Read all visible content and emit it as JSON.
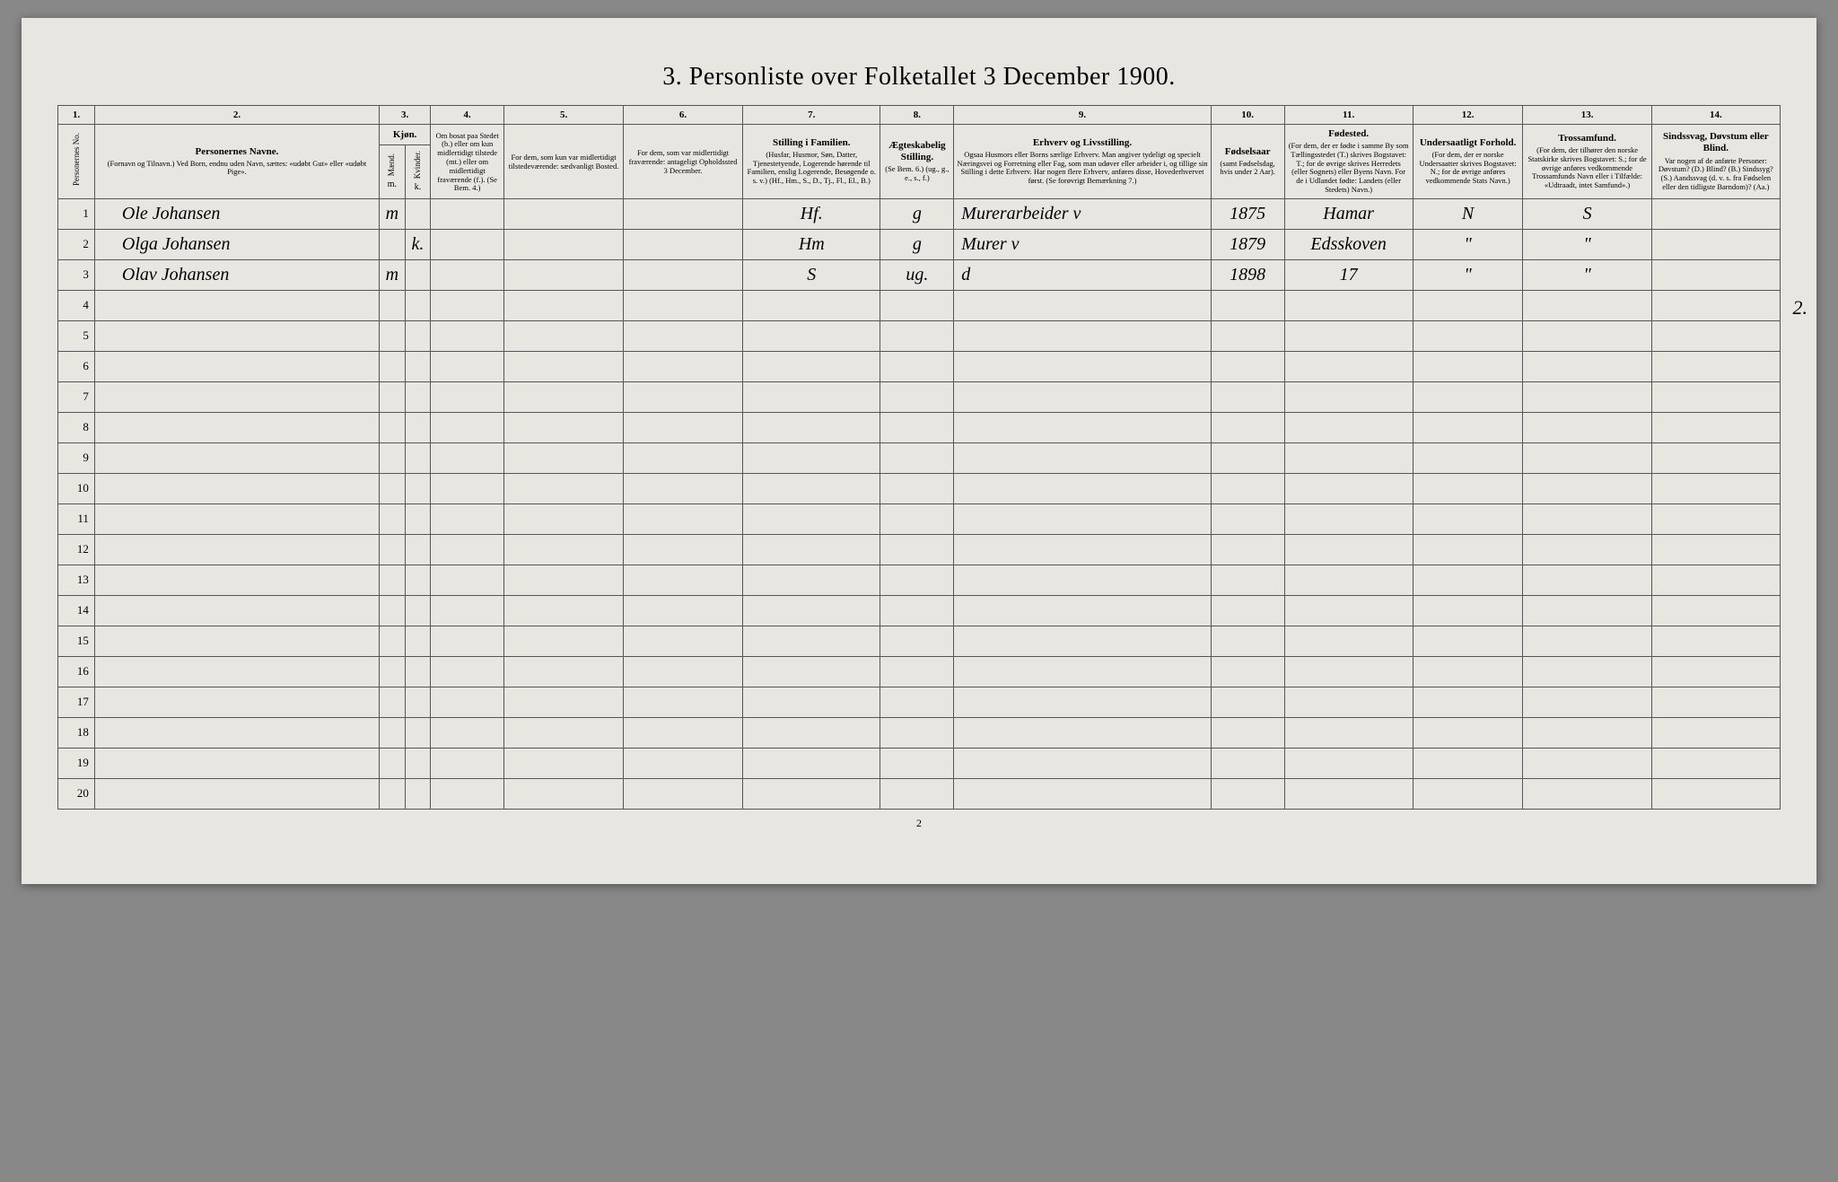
{
  "page_title": "3. Personliste over Folketallet 3 December 1900.",
  "page_number": "2",
  "margin_note": "2.",
  "columns": {
    "c1": {
      "num": "1.",
      "label": "Personernes No."
    },
    "c2": {
      "num": "2.",
      "main": "Personernes Navne.",
      "sub": "(Fornavn og Tilnavn.)\nVed Born, endnu uden Navn, sættes: «udøbt Gut» eller «udøbt Pige»."
    },
    "c3": {
      "num": "3.",
      "main": "Kjøn.",
      "sub_m": "Mænd.",
      "sub_k": "Kvinder.",
      "m": "m.",
      "k": "k."
    },
    "c4": {
      "num": "4.",
      "sub": "Om bosat paa Stedet (b.) eller om kun midlertidigt tilstede (mt.) eller om midlertidigt fraværende (f.). (Se Bem. 4.)"
    },
    "c5": {
      "num": "5.",
      "sub": "For dem, som kun var midlertidigt tilstedeværende:\nsædvanligt Bosted."
    },
    "c6": {
      "num": "6.",
      "sub": "For dem, som var midlertidigt fraværende:\nantageligt Opholdssted 3 December."
    },
    "c7": {
      "num": "7.",
      "main": "Stilling i Familien.",
      "sub": "(Husfar, Husmor, Søn, Datter, Tjenestetyende, Logerende hørende til Familien, enslig Logerende, Besøgende o. s. v.)\n(Hf., Hm., S., D., Tj., Fl., El., B.)"
    },
    "c8": {
      "num": "8.",
      "main": "Ægteskabelig Stilling.",
      "sub": "(Se Bem. 6.)\n(ug., g., e., s., f.)"
    },
    "c9": {
      "num": "9.",
      "main": "Erhverv og Livsstilling.",
      "sub": "Ogsaa Husmors eller Borns særlige Erhverv. Man angiver tydeligt og specielt Næringsvei og Forretning eller Fag, som man udøver eller arbeider i, og tillige sin Stilling i dette Erhverv. Har nogen flere Erhverv, anføres disse, Hovederhvervet først.\n(Se forøvrigt Bemærkning 7.)"
    },
    "c10": {
      "num": "10.",
      "main": "Fødselsaar",
      "sub": "(samt Fødselsdag, hvis under 2 Aar)."
    },
    "c11": {
      "num": "11.",
      "main": "Fødested.",
      "sub": "(For dem, der er fødte i samme By som Tællingsstedet (T.) skrives Bogstavet: T.; for de øvrige skrives Herredets (eller Sognets) eller Byens Navn. For de i Udlandet fødte: Landets (eller Stedets) Navn.)"
    },
    "c12": {
      "num": "12.",
      "main": "Undersaatligt Forhold.",
      "sub": "(For dem, der er norske Undersaatter skrives Bogstavet: N.; for de øvrige anføres vedkommende Stats Navn.)"
    },
    "c13": {
      "num": "13.",
      "main": "Trossamfund.",
      "sub": "(For dem, der tilhører den norske Statskirke skrives Bogstavet: S.; for de øvrige anføres vedkommende Trossamfunds Navn eller i Tilfælde: «Udtraadt, intet Samfund».)"
    },
    "c14": {
      "num": "14.",
      "main": "Sindssvag, Døvstum eller Blind.",
      "sub": "Var nogen af de anførte Personer:\nDøvstum? (D.)\nBlind? (B.)\nSindssyg? (S.)\nAandssvag (d. v. s. fra Fødselen eller den tidligste Barndom)? (Aa.)"
    }
  },
  "rows": [
    {
      "n": "1",
      "name": "Ole Johansen",
      "sex_m": "m",
      "sex_k": "",
      "c7": "Hf.",
      "c8": "g",
      "c9": "Murerarbeider         v",
      "c10": "1875",
      "c11": "Hamar",
      "c12": "N",
      "c13": "S"
    },
    {
      "n": "2",
      "name": "Olga Johansen",
      "sex_m": "",
      "sex_k": "k.",
      "c7": "Hm",
      "c8": "g",
      "c9": "Murer                       v",
      "c10": "1879",
      "c11": "Edsskoven",
      "c12": "\"",
      "c13": "\""
    },
    {
      "n": "3",
      "name": "Olav Johansen",
      "sex_m": "m",
      "sex_k": "",
      "c7": "S",
      "c8": "ug.",
      "c9": "                                   d",
      "c10": "1898",
      "c11": "17",
      "c12": "\"",
      "c13": "\""
    }
  ],
  "empty_row_nums": [
    "4",
    "5",
    "6",
    "7",
    "8",
    "9",
    "10",
    "11",
    "12",
    "13",
    "14",
    "15",
    "16",
    "17",
    "18",
    "19",
    "20"
  ],
  "col_widths": {
    "c1": "2.0%",
    "c2": "15.5%",
    "c3m": "1.4%",
    "c3k": "1.4%",
    "c4": "4.0%",
    "c5": "6.5%",
    "c6": "6.5%",
    "c7": "7.5%",
    "c8": "4.0%",
    "c9": "14.0%",
    "c10": "4.0%",
    "c11": "7.0%",
    "c12": "6.0%",
    "c13": "7.0%",
    "c14": "7.0%"
  },
  "colors": {
    "page_bg": "#e8e6e0",
    "border": "#555555",
    "text": "#222222"
  }
}
